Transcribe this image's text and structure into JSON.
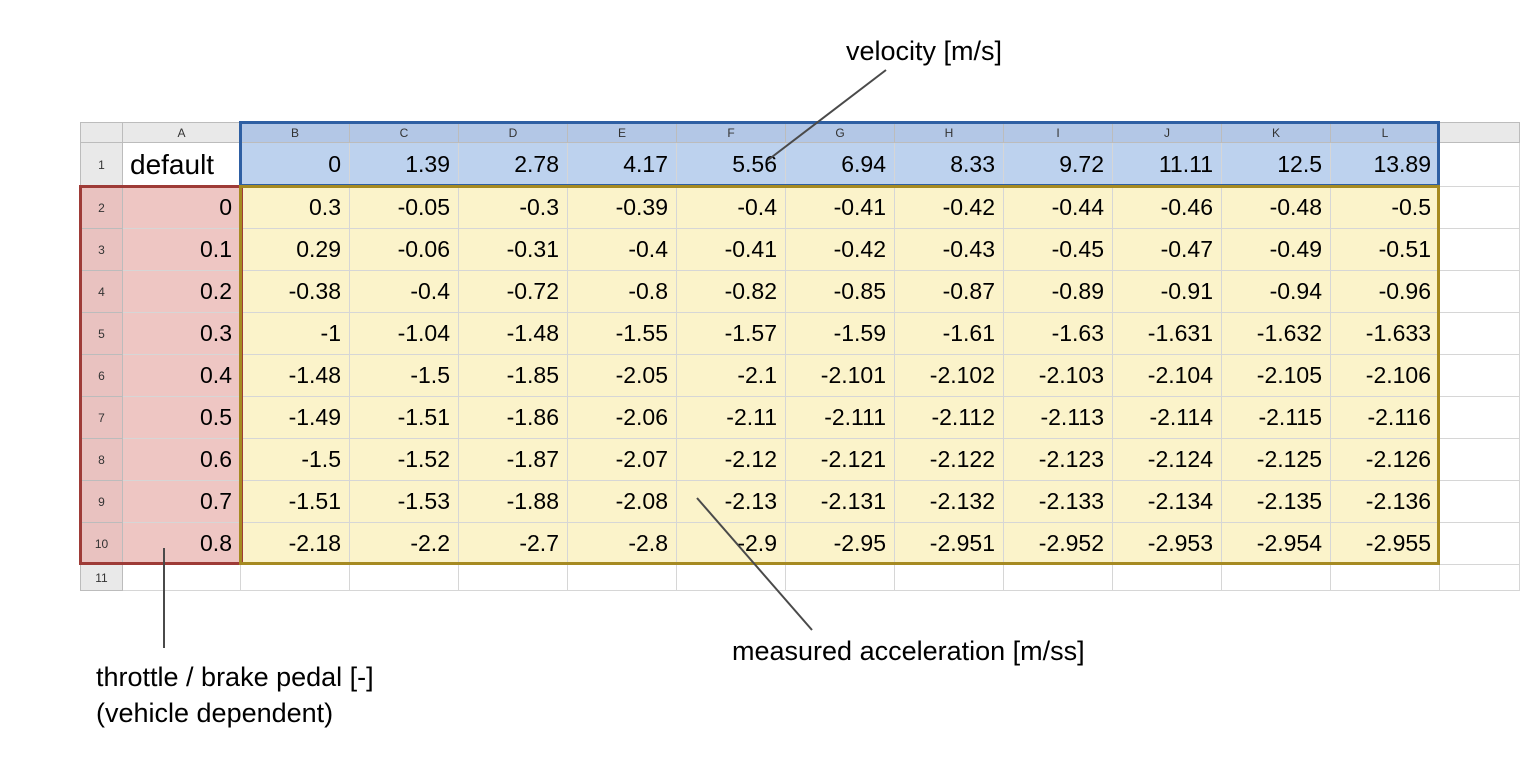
{
  "annotations": {
    "velocity_label": "velocity [m/s]",
    "acceleration_label": "measured acceleration [m/ss]",
    "throttle_label_line1": "throttle / brake pedal [-]",
    "throttle_label_line2": "(vehicle dependent)"
  },
  "spreadsheet": {
    "column_headers": [
      "A",
      "B",
      "C",
      "D",
      "E",
      "F",
      "G",
      "H",
      "I",
      "J",
      "K",
      "L"
    ],
    "row_headers": [
      "1",
      "2",
      "3",
      "4",
      "5",
      "6",
      "7",
      "8",
      "9",
      "10",
      "11"
    ],
    "a1": "default",
    "velocity_row": [
      "0",
      "1.39",
      "2.78",
      "4.17",
      "5.56",
      "6.94",
      "8.33",
      "9.72",
      "11.11",
      "12.5",
      "13.89"
    ],
    "throttle_values": [
      "0",
      "0.1",
      "0.2",
      "0.3",
      "0.4",
      "0.5",
      "0.6",
      "0.7",
      "0.8"
    ],
    "acceleration_rows": [
      [
        "0.3",
        "-0.05",
        "-0.3",
        "-0.39",
        "-0.4",
        "-0.41",
        "-0.42",
        "-0.44",
        "-0.46",
        "-0.48",
        "-0.5"
      ],
      [
        "0.29",
        "-0.06",
        "-0.31",
        "-0.4",
        "-0.41",
        "-0.42",
        "-0.43",
        "-0.45",
        "-0.47",
        "-0.49",
        "-0.51"
      ],
      [
        "-0.38",
        "-0.4",
        "-0.72",
        "-0.8",
        "-0.82",
        "-0.85",
        "-0.87",
        "-0.89",
        "-0.91",
        "-0.94",
        "-0.96"
      ],
      [
        "-1",
        "-1.04",
        "-1.48",
        "-1.55",
        "-1.57",
        "-1.59",
        "-1.61",
        "-1.63",
        "-1.631",
        "-1.632",
        "-1.633"
      ],
      [
        "-1.48",
        "-1.5",
        "-1.85",
        "-2.05",
        "-2.1",
        "-2.101",
        "-2.102",
        "-2.103",
        "-2.104",
        "-2.105",
        "-2.106"
      ],
      [
        "-1.49",
        "-1.51",
        "-1.86",
        "-2.06",
        "-2.11",
        "-2.111",
        "-2.112",
        "-2.113",
        "-2.114",
        "-2.115",
        "-2.116"
      ],
      [
        "-1.5",
        "-1.52",
        "-1.87",
        "-2.07",
        "-2.12",
        "-2.121",
        "-2.122",
        "-2.123",
        "-2.124",
        "-2.125",
        "-2.126"
      ],
      [
        "-1.51",
        "-1.53",
        "-1.88",
        "-2.08",
        "-2.13",
        "-2.131",
        "-2.132",
        "-2.133",
        "-2.134",
        "-2.135",
        "-2.136"
      ],
      [
        "-2.18",
        "-2.2",
        "-2.7",
        "-2.8",
        "-2.9",
        "-2.95",
        "-2.951",
        "-2.952",
        "-2.953",
        "-2.954",
        "-2.955"
      ]
    ]
  },
  "colors": {
    "velocity_fill": "#bdd2ee",
    "velocity_header_fill": "#b3c7e6",
    "velocity_border": "#2e5fa3",
    "throttle_fill": "#eec6c3",
    "throttle_header_fill": "#e9c2c0",
    "throttle_border": "#9e3b37",
    "acceleration_fill": "#fbf3ca",
    "acceleration_border": "#a68a21",
    "header_fill": "#e9e9e9",
    "header_border": "#bcbcbc",
    "gridline": "#d6d6d6",
    "annotation_line": "#4a4a4a"
  }
}
